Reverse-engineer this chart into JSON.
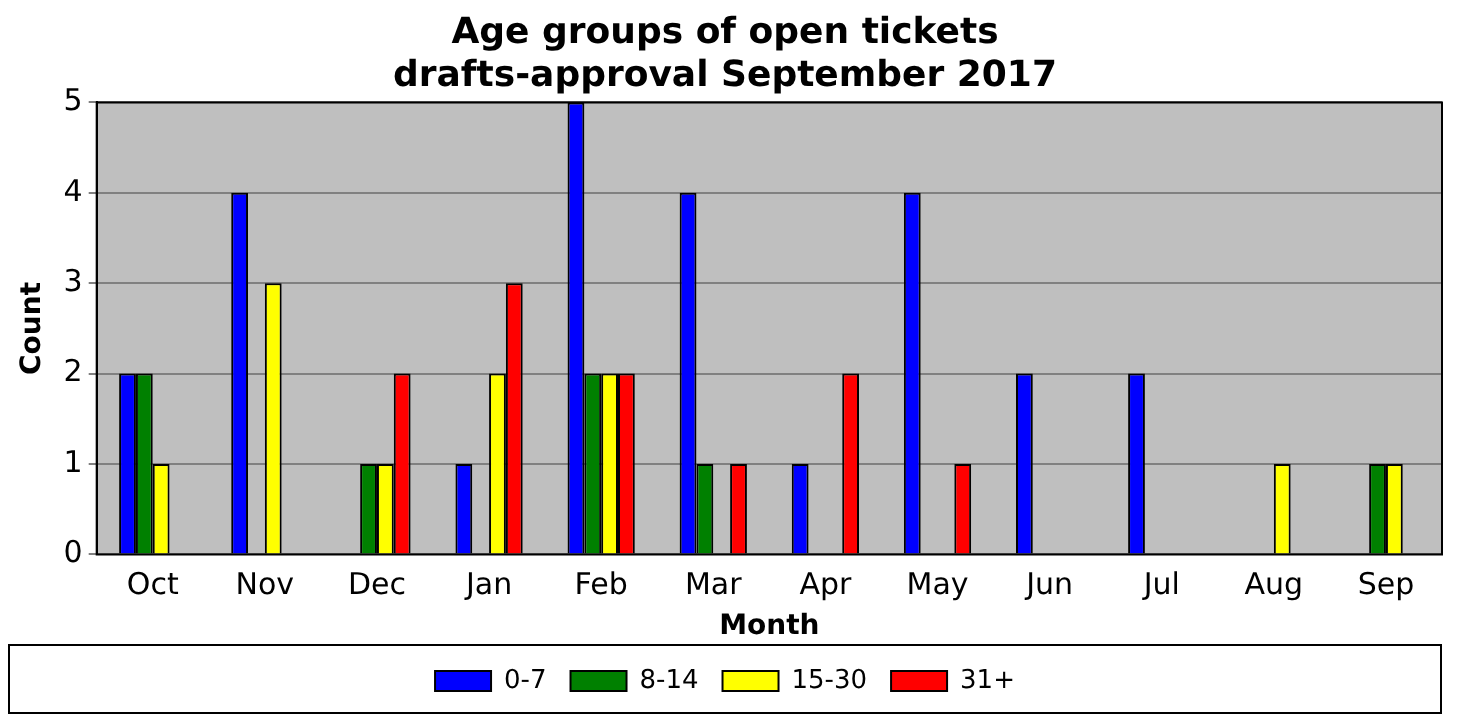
{
  "chart_data": {
    "type": "bar",
    "title": "Age groups of open tickets\ndrafts-approval September 2017",
    "xlabel": "Month",
    "ylabel": "Count",
    "categories": [
      "Oct",
      "Nov",
      "Dec",
      "Jan",
      "Feb",
      "Mar",
      "Apr",
      "May",
      "Jun",
      "Jul",
      "Aug",
      "Sep"
    ],
    "series": [
      {
        "name": "0-7",
        "color": "#0000ff",
        "values": [
          2,
          4,
          0,
          1,
          5,
          4,
          1,
          4,
          2,
          2,
          0,
          0
        ]
      },
      {
        "name": "8-14",
        "color": "#008000",
        "values": [
          2,
          0,
          1,
          0,
          2,
          1,
          0,
          0,
          0,
          0,
          0,
          1
        ]
      },
      {
        "name": "15-30",
        "color": "#ffff00",
        "values": [
          1,
          3,
          1,
          2,
          2,
          0,
          0,
          0,
          0,
          0,
          1,
          1
        ]
      },
      {
        "name": "31+",
        "color": "#ff0000",
        "values": [
          0,
          0,
          2,
          3,
          2,
          1,
          2,
          1,
          0,
          0,
          0,
          0
        ]
      }
    ],
    "ylim": [
      0,
      5
    ],
    "yticks": [
      0,
      1,
      2,
      3,
      4,
      5
    ],
    "grid": "y",
    "legend": "bottom"
  }
}
